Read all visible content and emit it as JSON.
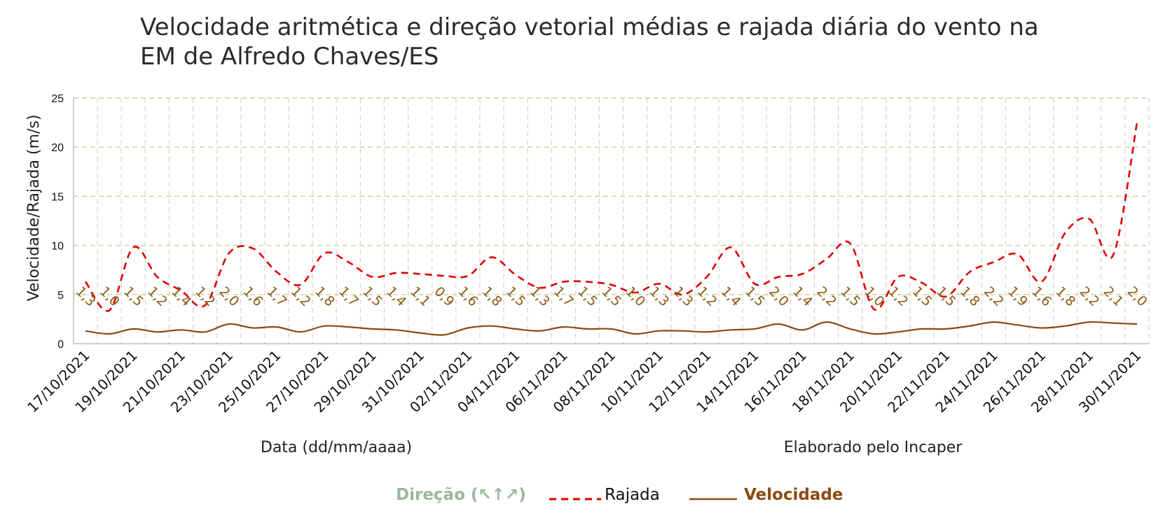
{
  "title_lines": [
    "Velocidade aritmética e direção vetorial médias e rajada diária do vento na",
    "EM de Alfredo Chaves/ES"
  ],
  "xlabel": "Data (dd/mm/aaaa)",
  "credit": "Elaborado pelo Incaper",
  "ylabel": "Velocidade/Rajada (m/s)",
  "legend": {
    "direction": "Direção (↖↑↗)",
    "gust": "Rajada",
    "speed": "Velocidade"
  },
  "colors": {
    "gust": "#e00000",
    "speed": "#8b4a10",
    "direction": "#9bb79a",
    "labels": "#8b5a12",
    "grid": "#c8d4a8"
  },
  "chart_data": {
    "type": "line",
    "ylim": [
      0,
      25
    ],
    "yticks": [
      0,
      5,
      10,
      15,
      20,
      25
    ],
    "grid": true,
    "legend_position": "bottom",
    "x": [
      "17/10/2021",
      "18/10/2021",
      "19/10/2021",
      "20/10/2021",
      "21/10/2021",
      "22/10/2021",
      "23/10/2021",
      "24/10/2021",
      "25/10/2021",
      "26/10/2021",
      "27/10/2021",
      "28/10/2021",
      "29/10/2021",
      "30/10/2021",
      "31/10/2021",
      "01/11/2021",
      "02/11/2021",
      "03/11/2021",
      "04/11/2021",
      "05/11/2021",
      "06/11/2021",
      "07/11/2021",
      "08/11/2021",
      "09/11/2021",
      "10/11/2021",
      "11/11/2021",
      "12/11/2021",
      "13/11/2021",
      "14/11/2021",
      "15/11/2021",
      "16/11/2021",
      "17/11/2021",
      "18/11/2021",
      "19/11/2021",
      "20/11/2021",
      "21/11/2021",
      "22/11/2021",
      "23/11/2021",
      "24/11/2021",
      "25/11/2021",
      "26/11/2021",
      "27/11/2021",
      "28/11/2021",
      "29/11/2021",
      "30/11/2021"
    ],
    "x_tick_labels": [
      "17/10/2021",
      "19/10/2021",
      "21/10/2021",
      "23/10/2021",
      "25/10/2021",
      "27/10/2021",
      "29/10/2021",
      "31/10/2021",
      "02/11/2021",
      "04/11/2021",
      "06/11/2021",
      "08/11/2021",
      "10/11/2021",
      "12/11/2021",
      "14/11/2021",
      "16/11/2021",
      "18/11/2021",
      "20/11/2021",
      "22/11/2021",
      "24/11/2021",
      "26/11/2021",
      "28/11/2021",
      "30/11/2021"
    ],
    "series": [
      {
        "name": "Rajada",
        "values": [
          6.3,
          3.4,
          9.8,
          6.8,
          5.4,
          3.9,
          9.2,
          9.7,
          7.3,
          6.0,
          9.2,
          8.3,
          6.8,
          7.2,
          7.1,
          6.9,
          6.9,
          8.8,
          7.0,
          5.7,
          6.3,
          6.3,
          6.0,
          5.2,
          6.1,
          5.0,
          6.8,
          9.8,
          6.1,
          6.8,
          7.1,
          8.6,
          10.2,
          3.5,
          6.8,
          6.2,
          4.8,
          7.3,
          8.3,
          9.1,
          6.3,
          11.3,
          12.7,
          9.0,
          22.5
        ]
      },
      {
        "name": "Velocidade",
        "values": [
          1.3,
          1.0,
          1.5,
          1.2,
          1.4,
          1.2,
          2.0,
          1.6,
          1.7,
          1.2,
          1.8,
          1.7,
          1.5,
          1.4,
          1.1,
          0.9,
          1.6,
          1.8,
          1.5,
          1.3,
          1.7,
          1.5,
          1.5,
          1.0,
          1.3,
          1.3,
          1.2,
          1.4,
          1.5,
          2.0,
          1.4,
          2.2,
          1.5,
          1.0,
          1.2,
          1.5,
          1.5,
          1.8,
          2.2,
          1.9,
          1.6,
          1.8,
          2.2,
          2.1,
          2.0
        ]
      }
    ],
    "data_labels": [
      "1,3",
      "1,0",
      "1,5",
      "1,2",
      "1,4",
      "1,2",
      "2,0",
      "1,6",
      "1,7",
      "1,2",
      "1,8",
      "1,7",
      "1,5",
      "1,4",
      "1,1",
      "0,9",
      "1,6",
      "1,8",
      "1,5",
      "1,3",
      "1,7",
      "1,5",
      "1,5",
      "1,0",
      "1,3",
      "1,3",
      "1,2",
      "1,4",
      "1,5",
      "2,0",
      "1,4",
      "2,2",
      "1,5",
      "1,0",
      "1,2",
      "1,5",
      "1,5",
      "1,8",
      "2,2",
      "1,9",
      "1,6",
      "1,8",
      "2,2",
      "2,1",
      "2,0"
    ],
    "direction_arrows": []
  }
}
